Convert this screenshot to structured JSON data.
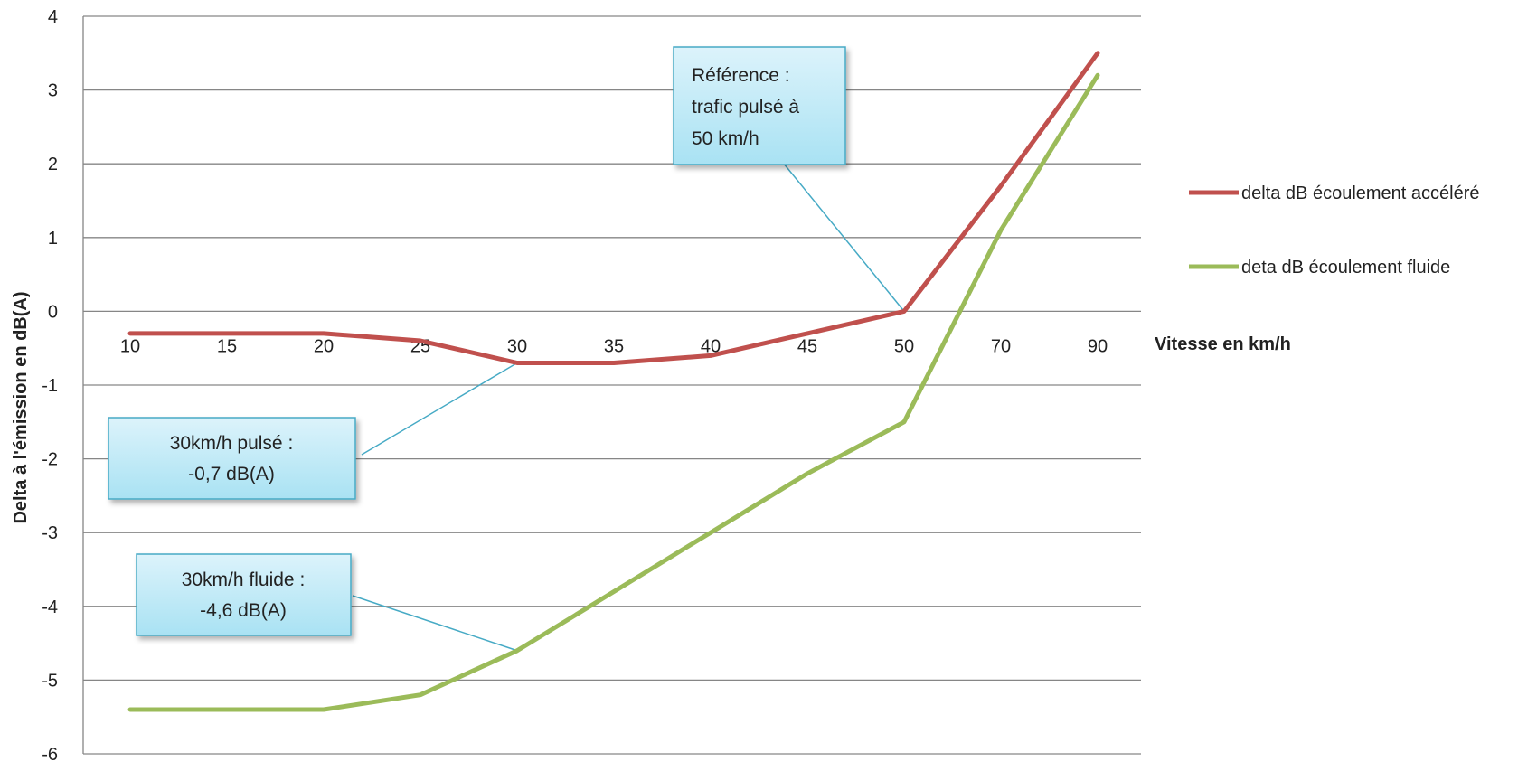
{
  "chart_data": {
    "type": "line",
    "categories": [
      "10",
      "15",
      "20",
      "25",
      "30",
      "35",
      "40",
      "45",
      "50",
      "70",
      "90"
    ],
    "series": [
      {
        "name": "delta dB écoulement accéléré",
        "color": "#c0504d",
        "values": [
          -0.3,
          -0.3,
          -0.3,
          -0.4,
          -0.7,
          -0.7,
          -0.6,
          -0.3,
          0,
          1.7,
          3.5
        ]
      },
      {
        "name": "deta dB écoulement fluide",
        "color": "#9bbb59",
        "values": [
          -5.4,
          -5.4,
          -5.4,
          -5.2,
          -4.6,
          -3.8,
          -3.0,
          -2.2,
          -1.5,
          1.1,
          3.2
        ]
      }
    ],
    "xlabel": "Vitesse en km/h",
    "ylabel": "Delta à l'émission en dB(A)",
    "ylim": [
      -6,
      4
    ],
    "yticks": [
      "4",
      "3",
      "2",
      "1",
      "0",
      "-1",
      "-2",
      "-3",
      "-4",
      "-5",
      "-6"
    ],
    "grid": true,
    "legend_position": "right",
    "annotations": [
      {
        "lines": [
          "Référence :",
          "trafic pulsé à",
          "50 km/h"
        ],
        "target_category": "50",
        "target_value": 0
      },
      {
        "lines": [
          "30km/h pulsé :",
          "-0,7 dB(A)"
        ],
        "target_category": "30",
        "target_value": -0.7
      },
      {
        "lines": [
          "30km/h fluide :",
          "-4,6 dB(A)"
        ],
        "target_category": "30",
        "target_value": -4.6
      }
    ],
    "colors": {
      "grid": "#868686",
      "callout_fill": "#b7e8f6",
      "callout_stroke": "#46aac5",
      "leader": "#46aac5"
    }
  }
}
